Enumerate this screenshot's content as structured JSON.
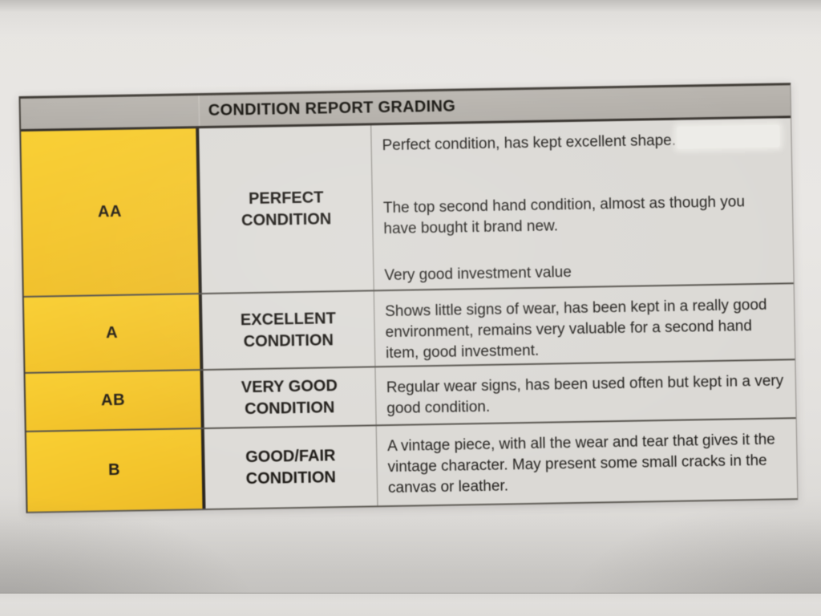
{
  "document": {
    "title": "CONDITION REPORT GRADING",
    "rows": [
      {
        "grade": "AA",
        "condition": "PERFECT CONDITION",
        "paragraphs": [
          "Perfect condition, has kept excellent shape.",
          "The top second hand condition, almost as though you have bought it brand new.",
          "Very good investment value"
        ]
      },
      {
        "grade": "A",
        "condition": "EXCELLENT CONDITION",
        "paragraphs": [
          "Shows little signs of wear, has been kept in a really good environment, remains very valuable for a second hand item, good investment."
        ]
      },
      {
        "grade": "AB",
        "condition": "VERY GOOD CONDITION",
        "paragraphs": [
          "Regular wear signs, has been used often but kept in a very good condition."
        ]
      },
      {
        "grade": "B",
        "condition": "GOOD/FAIR CONDITION",
        "paragraphs": [
          "A vintage piece, with all the wear and tear that gives it the vintage character. May present some small cracks in the canvas or leather."
        ]
      }
    ],
    "colors": {
      "grade_column_yellow": "#f3c52d",
      "header_bar_gray": "#b4b0aa",
      "cell_background": "#dcdad6",
      "paper_background": "#e8e6e3",
      "text": "#211f1c"
    }
  }
}
